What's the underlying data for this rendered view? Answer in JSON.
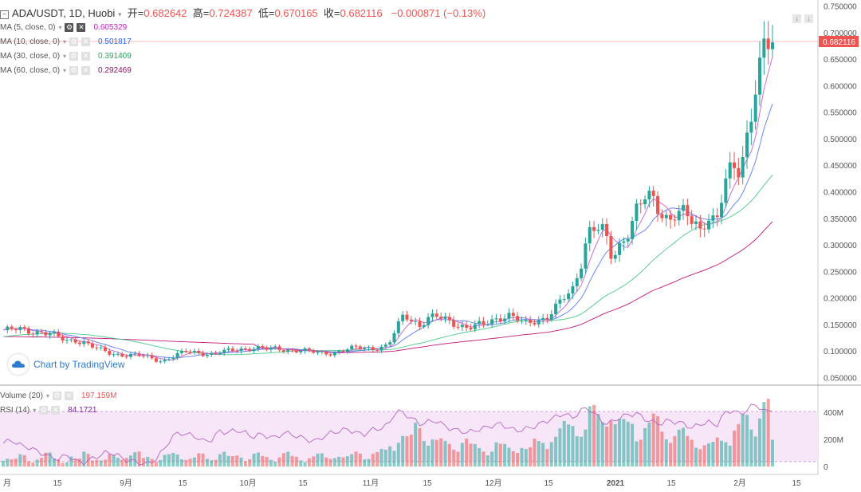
{
  "header": {
    "symbol": "ADA/USDT, 1D, Huobi",
    "open_label": "开=",
    "open": "0.682642",
    "high_label": "高=",
    "high": "0.724387",
    "low_label": "低=",
    "low": "0.670165",
    "close_label": "收=",
    "close": "0.682116",
    "change": "−0.000871 (−0.13%)"
  },
  "indicators": [
    {
      "name": "MA (5, close, 0)",
      "value": "0.605329",
      "color": "#c21fc8"
    },
    {
      "name": "MA (10, close, 0)",
      "value": "0.501817",
      "color": "#2962ff"
    },
    {
      "name": "MA (30, close, 0)",
      "value": "0.391409",
      "color": "#26a65b"
    },
    {
      "name": "MA (60, close, 0)",
      "value": "0.292469",
      "color": "#8e1464"
    }
  ],
  "volume_indicator": {
    "name": "Volume (20)",
    "value": "197.159M",
    "color": "#ef5350"
  },
  "rsi_indicator": {
    "name": "RSI (14)",
    "value": "84.1721",
    "color": "#7b1fa2"
  },
  "watermark": "Chart by TradingView",
  "last_price_label": "0.682116",
  "colors": {
    "up": "#26a69a",
    "down": "#ef5350",
    "rsi": "#9c27b0",
    "rsi_band": "#f3e2f5"
  },
  "chart_data": {
    "type": "candlestick",
    "price_axis": {
      "ticks": [
        "0.750000",
        "0.700000",
        "0.650000",
        "0.600000",
        "0.550000",
        "0.500000",
        "0.450000",
        "0.400000",
        "0.350000",
        "0.300000",
        "0.250000",
        "0.200000",
        "0.150000",
        "0.100000",
        "0.050000"
      ]
    },
    "volume_axis": {
      "ticks": [
        "400M",
        "200M",
        "0"
      ]
    },
    "time_axis": {
      "ticks": [
        "月",
        "15",
        "9月",
        "15",
        "10月",
        "15",
        "11月",
        "15",
        "12月",
        "15",
        "2021",
        "15",
        "2月",
        "15"
      ]
    },
    "close_path": [
      0.14,
      0.14,
      0.142,
      0.139,
      0.138,
      0.136,
      0.132,
      0.125,
      0.12,
      0.122,
      0.118,
      0.11,
      0.103,
      0.098,
      0.095,
      0.094,
      0.093,
      0.092,
      0.089,
      0.085,
      0.082,
      0.09,
      0.095,
      0.1,
      0.098,
      0.097,
      0.095,
      0.098,
      0.1,
      0.103,
      0.105,
      0.107,
      0.106,
      0.104,
      0.105,
      0.104,
      0.103,
      0.102,
      0.1,
      0.098,
      0.097,
      0.098,
      0.1,
      0.104,
      0.106,
      0.107,
      0.106,
      0.108,
      0.11,
      0.14,
      0.17,
      0.16,
      0.15,
      0.162,
      0.165,
      0.16,
      0.155,
      0.15,
      0.145,
      0.148,
      0.15,
      0.158,
      0.165,
      0.17,
      0.162,
      0.15,
      0.155,
      0.16,
      0.168,
      0.185,
      0.2,
      0.21,
      0.26,
      0.33,
      0.34,
      0.32,
      0.27,
      0.3,
      0.33,
      0.37,
      0.39,
      0.38,
      0.36,
      0.35,
      0.37,
      0.36,
      0.34,
      0.32,
      0.36,
      0.35,
      0.42,
      0.44,
      0.43,
      0.52,
      0.62,
      0.69,
      0.682
    ],
    "volume_path": [
      60,
      45,
      70,
      40,
      55,
      80,
      50,
      35,
      65,
      45,
      90,
      55,
      40,
      70,
      60,
      75,
      85,
      50,
      65,
      45,
      70,
      80,
      60,
      55,
      75,
      50,
      65,
      90,
      60,
      70,
      55,
      80,
      60,
      50,
      70,
      85,
      60,
      45,
      65,
      75,
      55,
      80,
      60,
      70,
      90,
      65,
      85,
      100,
      140,
      210,
      180,
      260,
      220,
      190,
      160,
      150,
      140,
      170,
      130,
      120,
      110,
      150,
      130,
      120,
      140,
      110,
      160,
      180,
      190,
      220,
      260,
      300,
      240,
      350,
      320,
      380,
      280,
      270,
      300,
      230,
      260,
      300,
      240,
      210,
      220,
      180,
      160,
      150,
      140,
      170,
      200,
      260,
      300,
      240,
      480,
      420,
      197
    ],
    "rsi_path": [
      48,
      52,
      46,
      44,
      40,
      36,
      32,
      30,
      35,
      28,
      26,
      30,
      34,
      38,
      36,
      30,
      28,
      26,
      24,
      30,
      40,
      55,
      60,
      58,
      56,
      50,
      52,
      62,
      60,
      63,
      61,
      55,
      58,
      56,
      54,
      60,
      58,
      55,
      52,
      50,
      56,
      60,
      62,
      64,
      60,
      58,
      63,
      65,
      68,
      85,
      82,
      76,
      70,
      72,
      74,
      68,
      64,
      62,
      60,
      63,
      65,
      68,
      70,
      66,
      62,
      64,
      66,
      70,
      74,
      78,
      82,
      76,
      85,
      88,
      80,
      70,
      72,
      78,
      80,
      82,
      76,
      72,
      70,
      74,
      72,
      70,
      65,
      70,
      72,
      68,
      82,
      86,
      80,
      88,
      92,
      84,
      84
    ]
  }
}
